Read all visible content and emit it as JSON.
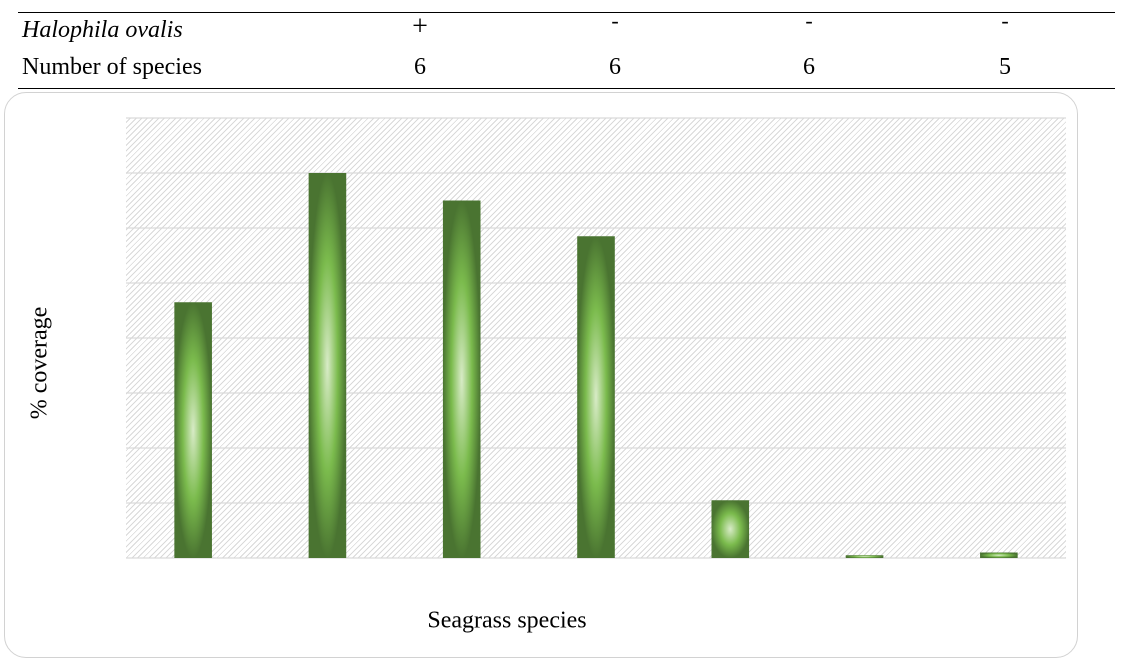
{
  "table": {
    "rows": [
      {
        "label": "Halophila ovalis",
        "cells": [
          "+",
          "-",
          "-",
          "-"
        ]
      },
      {
        "label": "Number of species",
        "cells": [
          "6",
          "6",
          "6",
          "5"
        ]
      }
    ]
  },
  "chart_data": {
    "type": "bar",
    "title": "",
    "xlabel": "Seagrass species",
    "ylabel": "% coverage",
    "categories": [
      "",
      "",
      "",
      "",
      "",
      "",
      ""
    ],
    "values": [
      4.65,
      7.0,
      6.5,
      5.85,
      1.05,
      0.05,
      0.1
    ],
    "ylim": [
      0,
      8
    ],
    "ygrid_step": 1,
    "grid": true,
    "legend": "none",
    "colors": {
      "bar_edge": "#4a7431",
      "bar_mid": "#7bbb4d",
      "bar_center": "#d8ebc7",
      "grid": "#d9d9d9"
    }
  }
}
